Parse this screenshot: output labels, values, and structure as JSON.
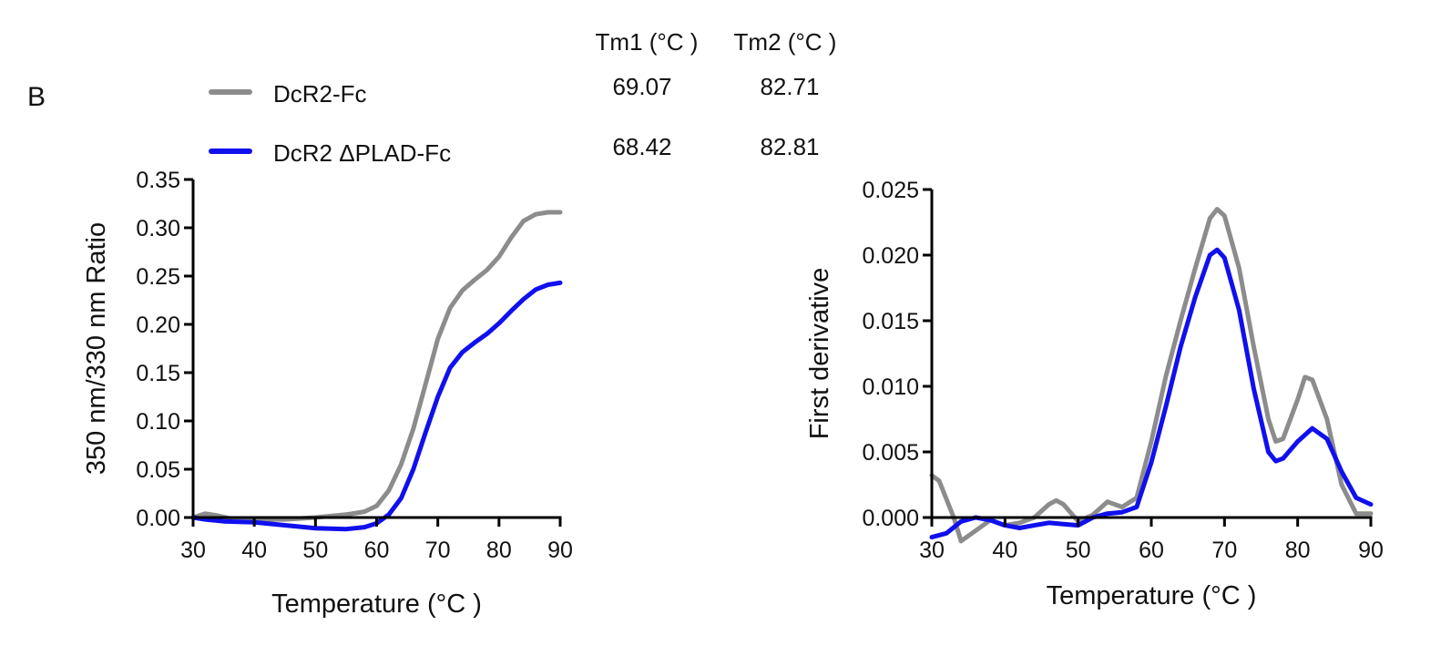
{
  "panel_label": "B",
  "colors": {
    "series_1": "#8c8c8c",
    "series_2": "#1010ee",
    "axis": "#000000"
  },
  "table": {
    "headers": [
      "Tm1 (°C )",
      "Tm2 (°C )"
    ],
    "rows": [
      {
        "name": "DcR2-Fc",
        "tm1": "69.07",
        "tm2": "82.71"
      },
      {
        "name": "DcR2 ΔPLAD-Fc",
        "tm1": "68.42",
        "tm2": "82.81"
      }
    ]
  },
  "chart_data": [
    {
      "type": "line",
      "xlabel": "Temperature (°C )",
      "ylabel": "350 nm/330 nm Ratio",
      "xlim": [
        30,
        90
      ],
      "ylim": [
        0,
        0.35
      ],
      "xticks": [
        "30",
        "40",
        "50",
        "60",
        "70",
        "80",
        "90"
      ],
      "yticks": [
        "0.00",
        "0.05",
        "0.10",
        "0.15",
        "0.20",
        "0.25",
        "0.30",
        "0.35"
      ],
      "legend": "top",
      "grid": false,
      "series": [
        {
          "name": "DcR2-Fc",
          "x": [
            30,
            32,
            34,
            36,
            40,
            45,
            50,
            55,
            58,
            60,
            62,
            64,
            66,
            68,
            70,
            72,
            74,
            76,
            78,
            80,
            82,
            84,
            86,
            88,
            90
          ],
          "y": [
            0.0,
            0.004,
            0.002,
            -0.001,
            -0.002,
            -0.002,
            0.0,
            0.003,
            0.006,
            0.012,
            0.028,
            0.055,
            0.092,
            0.138,
            0.185,
            0.217,
            0.235,
            0.246,
            0.256,
            0.27,
            0.29,
            0.307,
            0.314,
            0.316,
            0.316
          ]
        },
        {
          "name": "DcR2 ΔPLAD-Fc",
          "x": [
            30,
            32,
            35,
            40,
            45,
            50,
            55,
            58,
            60,
            62,
            64,
            66,
            68,
            70,
            72,
            74,
            76,
            78,
            80,
            82,
            84,
            86,
            88,
            90
          ],
          "y": [
            0.0,
            -0.002,
            -0.004,
            -0.005,
            -0.008,
            -0.011,
            -0.012,
            -0.01,
            -0.006,
            0.003,
            0.02,
            0.05,
            0.088,
            0.125,
            0.155,
            0.171,
            0.181,
            0.19,
            0.201,
            0.214,
            0.226,
            0.236,
            0.241,
            0.243
          ]
        }
      ]
    },
    {
      "type": "line",
      "xlabel": "Temperature (°C )",
      "ylabel": "First derivative",
      "xlim": [
        30,
        90
      ],
      "ylim": [
        0,
        0.025
      ],
      "xticks": [
        "30",
        "40",
        "50",
        "60",
        "70",
        "80",
        "90"
      ],
      "yticks": [
        "0.000",
        "0.005",
        "0.010",
        "0.015",
        "0.020",
        "0.025"
      ],
      "legend": "none",
      "grid": false,
      "series": [
        {
          "name": "DcR2-Fc",
          "x": [
            30,
            31,
            33,
            34,
            36,
            38,
            40,
            42,
            44,
            46,
            47,
            48,
            50,
            52,
            54,
            56,
            58,
            60,
            62,
            64,
            66,
            68,
            69,
            70,
            72,
            74,
            76,
            77,
            78,
            80,
            81,
            82,
            84,
            86,
            88,
            90
          ],
          "y": [
            0.0032,
            0.0028,
            0.0,
            -0.0018,
            -0.001,
            -0.0002,
            -0.0006,
            -0.0004,
            0.0,
            0.001,
            0.0013,
            0.001,
            -0.0003,
            0.0002,
            0.0012,
            0.0008,
            0.0015,
            0.0058,
            0.0108,
            0.015,
            0.019,
            0.0228,
            0.0235,
            0.023,
            0.019,
            0.013,
            0.0075,
            0.0058,
            0.006,
            0.009,
            0.0107,
            0.0105,
            0.0075,
            0.0025,
            0.0003,
            0.0003
          ]
        },
        {
          "name": "DcR2 ΔPLAD-Fc",
          "x": [
            30,
            32,
            34,
            36,
            38,
            40,
            42,
            44,
            46,
            48,
            50,
            52,
            54,
            56,
            58,
            60,
            62,
            64,
            66,
            68,
            69,
            70,
            72,
            74,
            76,
            77,
            78,
            80,
            82,
            84,
            86,
            88,
            90
          ],
          "y": [
            -0.0015,
            -0.0012,
            -0.0003,
            0.0,
            -0.0002,
            -0.0006,
            -0.0008,
            -0.0006,
            -0.0004,
            -0.0005,
            -0.0006,
            0.0,
            0.0003,
            0.0004,
            0.0008,
            0.0042,
            0.0085,
            0.013,
            0.0168,
            0.02,
            0.0204,
            0.0198,
            0.0158,
            0.0098,
            0.005,
            0.0043,
            0.0045,
            0.0058,
            0.0068,
            0.006,
            0.0035,
            0.0015,
            0.001
          ]
        }
      ]
    }
  ]
}
